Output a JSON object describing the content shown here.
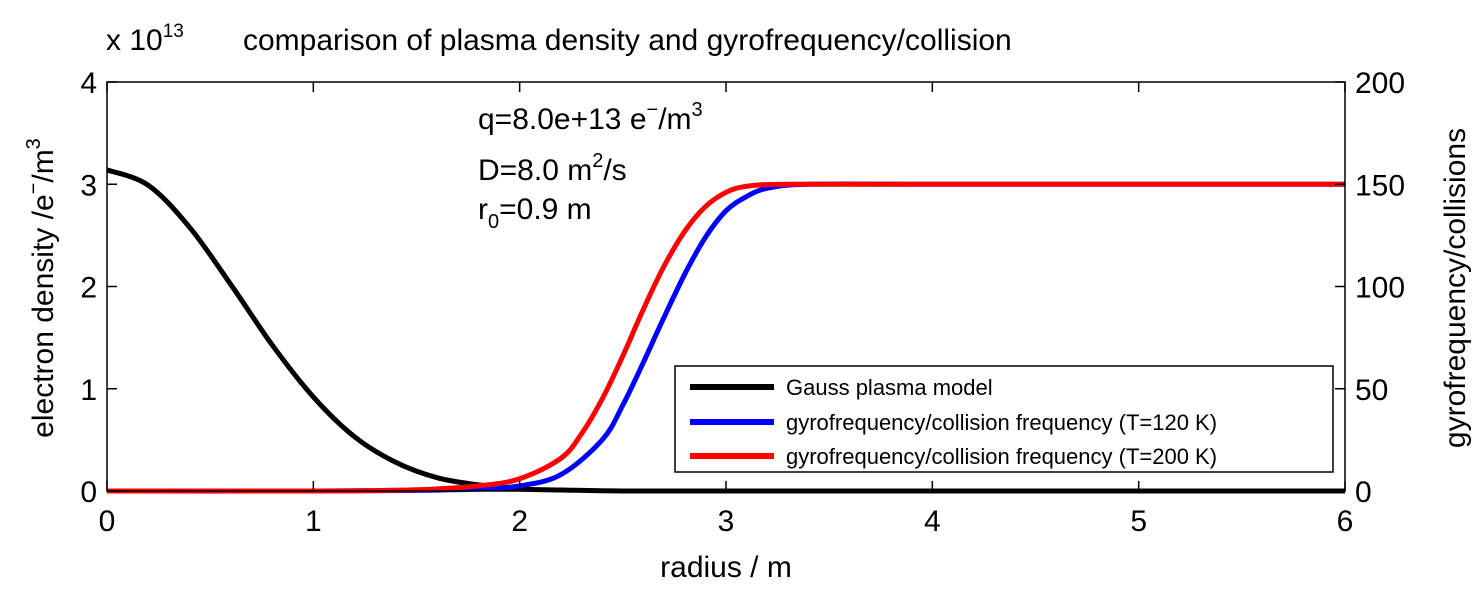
{
  "chart_data": {
    "type": "line",
    "title": "comparison of plasma density and gyrofrequency/collision",
    "exponent_prefix": "x 10",
    "exponent_power": "13",
    "xlabel": "radius / m",
    "ylabel_left": {
      "base": "electron density /e",
      "sup1": "−",
      "mid": "/m",
      "sup2": "3"
    },
    "ylabel_right": "gyrofrequency/collisions",
    "xlim": [
      0,
      6
    ],
    "ylim_left": [
      0,
      4
    ],
    "ylim_right": [
      0,
      200
    ],
    "xticks": [
      0,
      1,
      2,
      3,
      4,
      5,
      6
    ],
    "yticks_left": [
      0,
      1,
      2,
      3,
      4
    ],
    "yticks_right": [
      0,
      50,
      100,
      150,
      200
    ],
    "grid": false,
    "legend_position": "bottom-right",
    "annotations": {
      "q": {
        "base": "q=8.0e+13 e",
        "sup1": "−",
        "mid": "/m",
        "sup2": "3"
      },
      "D": {
        "base": "D=8.0 m",
        "sup": "2",
        "tail": "/s"
      },
      "r0": {
        "base": "r",
        "sub": "0",
        "tail": "=0.9 m"
      }
    },
    "series": [
      {
        "name": "Gauss plasma model",
        "color": "#000000",
        "axis": "left",
        "x": [
          0,
          0.2,
          0.4,
          0.6,
          0.8,
          1.0,
          1.2,
          1.4,
          1.6,
          1.8,
          2.0,
          2.2,
          2.5,
          3.0,
          4.0,
          5.0,
          6.0
        ],
        "y": [
          3.14,
          2.99,
          2.58,
          2.02,
          1.43,
          0.92,
          0.53,
          0.28,
          0.13,
          0.06,
          0.02,
          0.01,
          0.0,
          0.0,
          0.0,
          0.0,
          0.0
        ]
      },
      {
        "name": "gyrofrequency/collision frequency (T=120 K)",
        "color": "#0000ff",
        "axis": "right",
        "x": [
          0,
          1.0,
          1.5,
          1.8,
          2.0,
          2.2,
          2.4,
          2.5,
          2.6,
          2.7,
          2.8,
          2.9,
          3.0,
          3.1,
          3.2,
          3.4,
          4.0,
          5.0,
          6.0
        ],
        "y": [
          0,
          0,
          0.3,
          1,
          2.5,
          8,
          25,
          42,
          63,
          85,
          106,
          124,
          137,
          144,
          148,
          150,
          150,
          150,
          150
        ]
      },
      {
        "name": "gyrofrequency/collision frequency (T=200 K)",
        "color": "#ff0000",
        "axis": "right",
        "x": [
          0,
          1.0,
          1.5,
          1.8,
          2.0,
          2.2,
          2.3,
          2.4,
          2.5,
          2.6,
          2.7,
          2.8,
          2.9,
          3.0,
          3.1,
          3.3,
          4.0,
          5.0,
          6.0
        ],
        "y": [
          0,
          0,
          0.6,
          2.5,
          6,
          16,
          28,
          45,
          66,
          89,
          110,
          127,
          139,
          146,
          149,
          150,
          150,
          150,
          150
        ]
      }
    ]
  }
}
